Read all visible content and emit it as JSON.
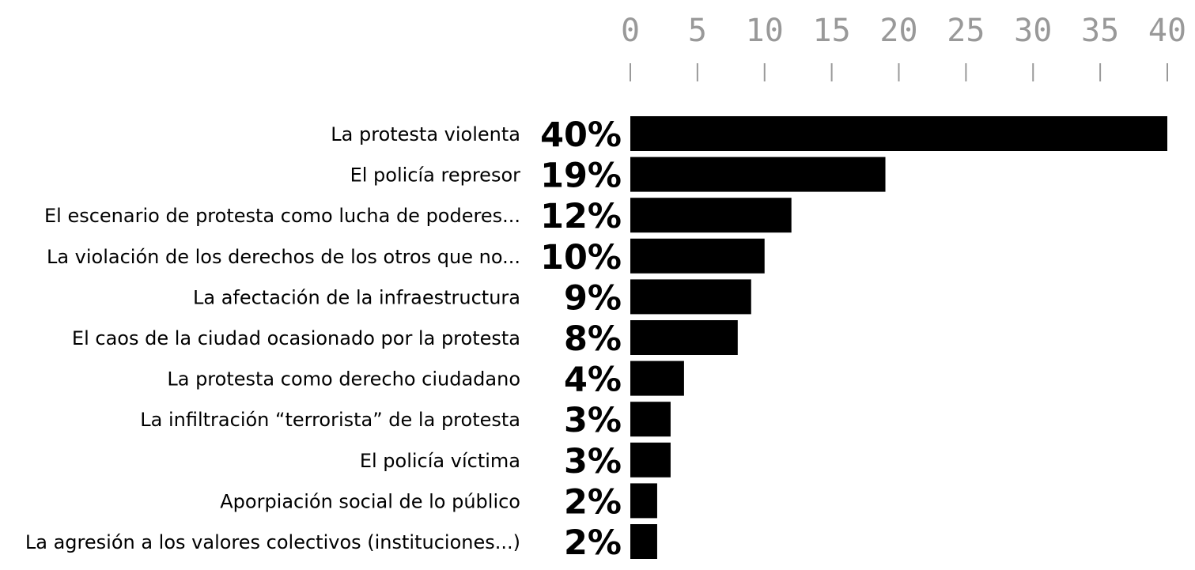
{
  "chart_data": {
    "type": "bar",
    "orientation": "horizontal",
    "categories": [
      "La protesta violenta",
      "El policía represor",
      "El escenario de protesta como lucha de poderes...",
      "La violación de los derechos de los otros que no...",
      "La afectación de la infraestructura",
      "El caos de la ciudad ocasionado por la protesta",
      "La protesta como derecho ciudadano",
      "La infiltración “terrorista” de la protesta",
      "El policía víctima",
      "Aporpiación social de lo público",
      "La agresión a los valores colectivos (instituciones...)"
    ],
    "values": [
      40,
      19,
      12,
      10,
      9,
      8,
      4,
      3,
      3,
      2,
      2
    ],
    "value_labels": [
      "40%",
      "19%",
      "12%",
      "10%",
      "9%",
      "8%",
      "4%",
      "3%",
      "3%",
      "2%",
      "2%"
    ],
    "x_ticks": [
      "0",
      "5",
      "10",
      "15",
      "20",
      "25",
      "30",
      "35",
      "40"
    ],
    "xlim": [
      0,
      40
    ],
    "axis_position": "top",
    "grid": false,
    "legend": "none",
    "colors": {
      "bar": "#000000",
      "tick": "#999999",
      "text": "#000000"
    }
  }
}
